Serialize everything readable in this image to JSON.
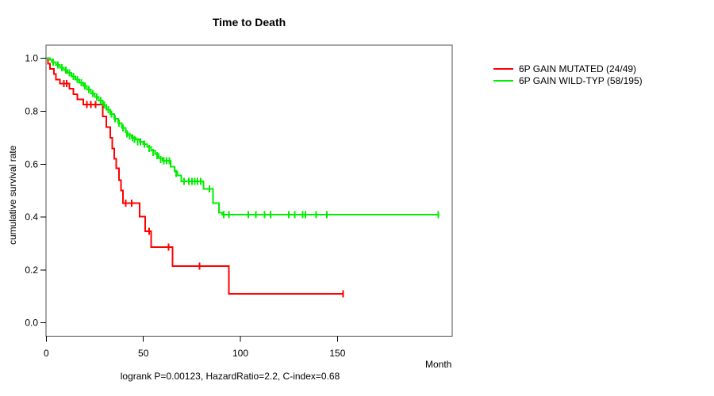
{
  "chart_data": {
    "type": "line",
    "chart_kind": "kaplan-meier-survival-step",
    "title": "Time to Death",
    "xlabel": "Month",
    "ylabel": "cumulative survival rate",
    "annotation": "logrank P=0.00123, HazardRatio=2.2, C-index=0.68",
    "xlim": [
      0,
      209
    ],
    "ylim": [
      0,
      1
    ],
    "xticks": [
      0,
      50,
      100,
      150
    ],
    "xtick_labels": [
      "0",
      "50",
      "100",
      "150"
    ],
    "yticks": [
      0.0,
      0.2,
      0.4,
      0.6,
      0.8,
      1.0
    ],
    "ytick_labels": [
      "0.0",
      "0.2",
      "0.4",
      "0.6",
      "0.8",
      "1.0"
    ],
    "grid": false,
    "legend_position": "right-outside",
    "series": [
      {
        "id": "mutated",
        "name": "6P GAIN MUTATED (24/49)",
        "color": "#ff0000",
        "events": "24/49",
        "end_month": 153,
        "steps": [
          [
            0,
            1.0
          ],
          [
            1,
            0.98
          ],
          [
            2,
            0.96
          ],
          [
            4,
            0.94
          ],
          [
            5,
            0.92
          ],
          [
            7,
            0.905
          ],
          [
            12,
            0.885
          ],
          [
            14,
            0.865
          ],
          [
            16,
            0.845
          ],
          [
            19,
            0.825
          ],
          [
            29,
            0.78
          ],
          [
            31,
            0.74
          ],
          [
            33,
            0.7
          ],
          [
            34,
            0.66
          ],
          [
            35,
            0.62
          ],
          [
            36,
            0.585
          ],
          [
            37.5,
            0.54
          ],
          [
            38.5,
            0.5
          ],
          [
            39.5,
            0.452
          ],
          [
            48,
            0.402
          ],
          [
            51,
            0.347
          ],
          [
            54,
            0.287
          ],
          [
            65,
            0.215
          ],
          [
            94,
            0.11
          ]
        ],
        "censors": [
          [
            9,
            0.905
          ],
          [
            10.5,
            0.905
          ],
          [
            21,
            0.825
          ],
          [
            23,
            0.825
          ],
          [
            25.5,
            0.825
          ],
          [
            41,
            0.452
          ],
          [
            44,
            0.452
          ],
          [
            53,
            0.347
          ],
          [
            63,
            0.287
          ],
          [
            79,
            0.215
          ],
          [
            153,
            0.11
          ]
        ]
      },
      {
        "id": "wild-typ",
        "name": "6P GAIN WILD-TYP (58/195)",
        "color": "#00ee00",
        "events": "58/195",
        "end_month": 202,
        "steps": [
          [
            0,
            1.0
          ],
          [
            2,
            0.995
          ],
          [
            3,
            0.985
          ],
          [
            5,
            0.975
          ],
          [
            7,
            0.965
          ],
          [
            9,
            0.955
          ],
          [
            11,
            0.945
          ],
          [
            13,
            0.932
          ],
          [
            15,
            0.92
          ],
          [
            17,
            0.908
          ],
          [
            19,
            0.896
          ],
          [
            21,
            0.882
          ],
          [
            23,
            0.868
          ],
          [
            25,
            0.854
          ],
          [
            27,
            0.84
          ],
          [
            29,
            0.824
          ],
          [
            31,
            0.806
          ],
          [
            33,
            0.79
          ],
          [
            35,
            0.772
          ],
          [
            37,
            0.755
          ],
          [
            39,
            0.737
          ],
          [
            41,
            0.72
          ],
          [
            42,
            0.71
          ],
          [
            44,
            0.7
          ],
          [
            46,
            0.693
          ],
          [
            48,
            0.685
          ],
          [
            50,
            0.676
          ],
          [
            52,
            0.665
          ],
          [
            54,
            0.652
          ],
          [
            56,
            0.638
          ],
          [
            58,
            0.624
          ],
          [
            60,
            0.613
          ],
          [
            64,
            0.59
          ],
          [
            66,
            0.572
          ],
          [
            67.5,
            0.558
          ],
          [
            69.5,
            0.535
          ],
          [
            81,
            0.507
          ],
          [
            86,
            0.452
          ],
          [
            89,
            0.417
          ],
          [
            90.5,
            0.41
          ]
        ],
        "censors": [
          [
            3.5,
            0.985
          ],
          [
            6,
            0.975
          ],
          [
            8,
            0.965
          ],
          [
            10,
            0.955
          ],
          [
            12,
            0.945
          ],
          [
            14,
            0.932
          ],
          [
            16,
            0.92
          ],
          [
            18,
            0.908
          ],
          [
            20,
            0.896
          ],
          [
            22,
            0.882
          ],
          [
            24,
            0.868
          ],
          [
            26,
            0.854
          ],
          [
            28,
            0.84
          ],
          [
            30,
            0.824
          ],
          [
            32,
            0.806
          ],
          [
            33.5,
            0.79
          ],
          [
            35.5,
            0.772
          ],
          [
            37.5,
            0.755
          ],
          [
            39.5,
            0.737
          ],
          [
            41.5,
            0.715
          ],
          [
            43,
            0.705
          ],
          [
            44.5,
            0.7
          ],
          [
            45.5,
            0.693
          ],
          [
            47,
            0.685
          ],
          [
            48.5,
            0.685
          ],
          [
            50.5,
            0.676
          ],
          [
            53,
            0.66
          ],
          [
            55,
            0.645
          ],
          [
            57,
            0.632
          ],
          [
            59,
            0.618
          ],
          [
            60.5,
            0.613
          ],
          [
            62,
            0.613
          ],
          [
            63.5,
            0.613
          ],
          [
            67,
            0.565
          ],
          [
            71,
            0.535
          ],
          [
            73.5,
            0.535
          ],
          [
            75,
            0.535
          ],
          [
            76.5,
            0.535
          ],
          [
            78,
            0.535
          ],
          [
            79.5,
            0.535
          ],
          [
            84,
            0.507
          ],
          [
            91.5,
            0.41
          ],
          [
            94,
            0.41
          ],
          [
            104,
            0.41
          ],
          [
            108,
            0.41
          ],
          [
            112.5,
            0.41
          ],
          [
            115.5,
            0.41
          ],
          [
            125,
            0.41
          ],
          [
            128,
            0.41
          ],
          [
            132,
            0.41
          ],
          [
            133.5,
            0.41
          ],
          [
            139,
            0.41
          ],
          [
            144.5,
            0.41
          ],
          [
            202,
            0.41
          ]
        ]
      }
    ]
  }
}
